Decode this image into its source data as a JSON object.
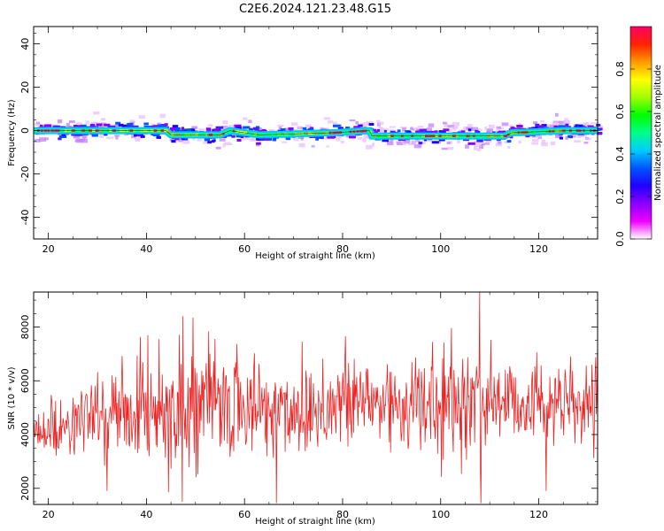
{
  "figure": {
    "title": "C2E6.2024.121.23.48.G15"
  },
  "chart_data": [
    {
      "type": "heatmap",
      "title": "",
      "xlabel": "Height of straight line (km)",
      "ylabel": "Frequency (Hz)",
      "xlim": [
        17,
        132
      ],
      "ylim": [
        -50,
        48
      ],
      "xticks": [
        20,
        40,
        60,
        80,
        100,
        120
      ],
      "yticks": [
        -40,
        -20,
        0,
        20,
        40
      ],
      "grid": false,
      "ridge": {
        "description_x": [
          17,
          44,
          45,
          55,
          57,
          63,
          78,
          85.5,
          86,
          100,
          113,
          114.5,
          126,
          132
        ],
        "frequency_hz": [
          0,
          0,
          -2,
          -2,
          0,
          -2,
          -1,
          0,
          -2.5,
          -2.5,
          -2.5,
          -1,
          0,
          0
        ]
      },
      "colorbar": {
        "label": "Normalized spectral amplitude",
        "range": [
          0.0,
          1.0
        ],
        "ticks": [
          "0.0",
          "0.2",
          "0.4",
          "0.6",
          "0.8"
        ],
        "tick_values": [
          0.0,
          0.2,
          0.4,
          0.6,
          0.8
        ],
        "colormap": [
          "#ffffff",
          "#ee00ff",
          "#8a00ff",
          "#2000ff",
          "#0055ff",
          "#00ccff",
          "#00ff88",
          "#00ff00",
          "#a0ff00",
          "#ffff00",
          "#ff9900",
          "#ff2200",
          "#ff0066"
        ]
      }
    },
    {
      "type": "line",
      "title": "",
      "xlabel": "Height of straight line (km)",
      "ylabel": "SNR (10 * v/v)",
      "xlim": [
        17,
        132
      ],
      "ylim": [
        1400,
        9300
      ],
      "xticks": [
        20,
        40,
        60,
        80,
        100,
        120
      ],
      "yticks": [
        2000,
        4000,
        6000,
        8000
      ],
      "grid": false,
      "series": [
        {
          "color": "#ee2222",
          "x_range": [
            17,
            132
          ],
          "n_points": 900,
          "envelope_x": [
            17,
            30,
            40,
            50,
            60,
            70,
            80,
            90,
            100,
            110,
            120,
            132
          ],
          "envelope_mean": [
            4000,
            4700,
            5000,
            5200,
            5000,
            4900,
            5200,
            5200,
            5000,
            5300,
            5200,
            4900
          ],
          "envelope_spread": [
            600,
            900,
            1300,
            1400,
            1300,
            1300,
            1300,
            1300,
            1300,
            1300,
            1000,
            900
          ],
          "notable_points": [
            {
              "x": 47.5,
              "y": 8400
            },
            {
              "x": 49.5,
              "y": 8350
            },
            {
              "x": 108,
              "y": 9300
            },
            {
              "x": 66.5,
              "y": 1450
            },
            {
              "x": 108.2,
              "y": 1450
            },
            {
              "x": 47.3,
              "y": 1500
            },
            {
              "x": 121.5,
              "y": 1900
            },
            {
              "x": 32,
              "y": 1900
            },
            {
              "x": 44.5,
              "y": 1850
            }
          ]
        }
      ]
    }
  ]
}
